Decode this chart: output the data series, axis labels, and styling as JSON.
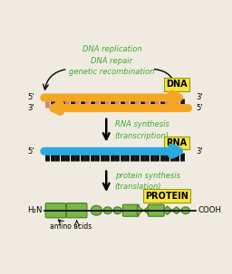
{
  "bg_color": "#f0ebe0",
  "title_color": "#3aaa35",
  "dna_top_color": "#f5a623",
  "dna_bottom_color": "#f5a623",
  "rna_color": "#29abe2",
  "protein_color": "#7ab648",
  "protein_edge_color": "#4a7a1e",
  "rung_light_color": "#d4837a",
  "rung_dark_color": "#1a1a1a",
  "rna_rung_color": "#111111",
  "label_bg": "#f5e642",
  "dna_text": "DNA replication\nDNA repair\ngenetic recombination",
  "rna_synthesis_text": "RNA synthesis\n(transcription)",
  "protein_synthesis_text": "protein synthesis\n(translation)",
  "dna_label": "DNA",
  "rna_label": "RNA",
  "protein_label": "PROTEIN",
  "amino_acids_label": "amino acids",
  "h2n_label": "H₂N",
  "cooh_label": "COOH"
}
